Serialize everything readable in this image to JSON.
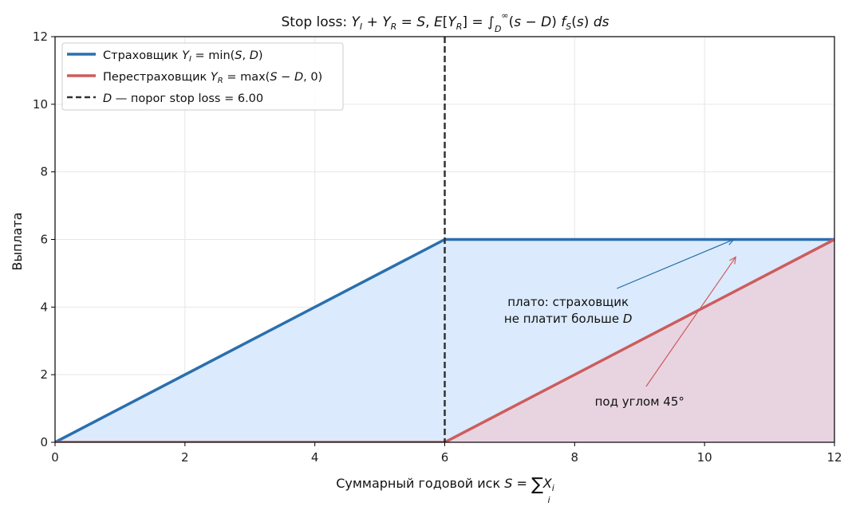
{
  "chart_data": {
    "type": "line",
    "title": "Stop loss: Y_I + Y_R = S,   E[Y_R] = ∫_D^∞ (s − D) f_S(s) ds",
    "xlabel": "Суммарный годовой иск S = Σ_i X_i",
    "ylabel": "Выплата",
    "xlim": [
      0,
      12
    ],
    "ylim": [
      0,
      12
    ],
    "x_ticks": [
      0,
      2,
      4,
      6,
      8,
      10,
      12
    ],
    "y_ticks": [
      0,
      2,
      4,
      6,
      8,
      10,
      12
    ],
    "grid": true,
    "legend_position": "top-left",
    "threshold_D": 6.0,
    "series": [
      {
        "name": "Страховщик Y_I = min(S, D)",
        "color": "#2a6faf",
        "fill": "#dbeafc",
        "x": [
          0,
          6,
          12
        ],
        "y": [
          0,
          6,
          6
        ]
      },
      {
        "name": "Перестраховщик Y_R = max(S − D, 0)",
        "color": "#cd5c5c",
        "fill": "#e8d4e0",
        "x": [
          0,
          6,
          12
        ],
        "y": [
          0,
          0,
          6
        ]
      }
    ],
    "threshold_line": {
      "name": "D — порог stop loss = 6.00",
      "x": 6,
      "color": "#333333",
      "style": "dashed"
    },
    "annotations": [
      {
        "name": "plateau-annotation",
        "lines": [
          "плато: страховщик",
          "не платит больше D"
        ],
        "text_x": 7.9,
        "text_y": 4.15,
        "arrow_from": [
          8.65,
          4.55
        ],
        "arrow_to": [
          10.45,
          6.0
        ],
        "color": "#1f6aa5"
      },
      {
        "name": "angle-annotation",
        "text": "под углом 45°",
        "text_x": 9.0,
        "text_y": 1.2,
        "arrow_from": [
          9.1,
          1.65
        ],
        "arrow_to": [
          10.48,
          5.48
        ],
        "color": "#cd5c5c"
      }
    ]
  }
}
